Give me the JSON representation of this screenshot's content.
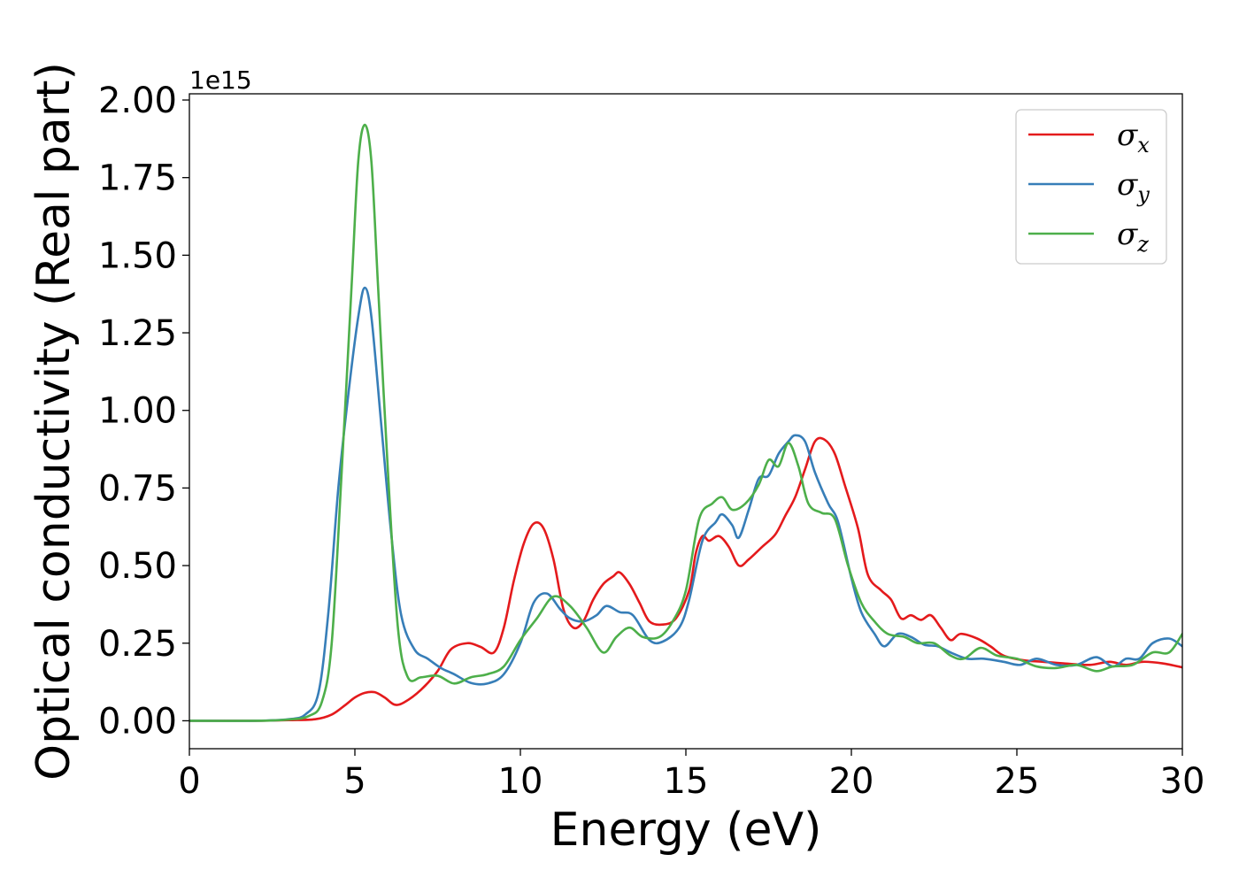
{
  "chart_data": {
    "type": "line",
    "xlabel": "Energy (eV)",
    "ylabel": "Optical conductivity (Real part)",
    "y_offset_label": "1e15",
    "xlim": [
      0,
      30
    ],
    "ylim": [
      -0.09,
      2.02
    ],
    "x_ticks": [
      0,
      5,
      10,
      15,
      20,
      25,
      30
    ],
    "x_tick_labels": [
      "0",
      "5",
      "10",
      "15",
      "20",
      "25",
      "30"
    ],
    "y_ticks": [
      0,
      0.25,
      0.5,
      0.75,
      1.0,
      1.25,
      1.5,
      1.75,
      2.0
    ],
    "y_tick_labels": [
      "0.00",
      "0.25",
      "0.50",
      "0.75",
      "1.00",
      "1.25",
      "1.50",
      "1.75",
      "2.00"
    ],
    "grid": false,
    "legend_position": "top-right",
    "series": [
      {
        "name": "σ",
        "subscript": "x",
        "color": "#e41a1c",
        "points": [
          [
            0,
            0
          ],
          [
            2,
            0
          ],
          [
            3,
            0.002
          ],
          [
            3.8,
            0.005
          ],
          [
            4.3,
            0.02
          ],
          [
            4.7,
            0.05
          ],
          [
            5.0,
            0.075
          ],
          [
            5.3,
            0.09
          ],
          [
            5.6,
            0.092
          ],
          [
            5.9,
            0.075
          ],
          [
            6.2,
            0.052
          ],
          [
            6.5,
            0.06
          ],
          [
            7.0,
            0.1
          ],
          [
            7.5,
            0.16
          ],
          [
            7.9,
            0.23
          ],
          [
            8.4,
            0.25
          ],
          [
            8.8,
            0.238
          ],
          [
            9.2,
            0.22
          ],
          [
            9.5,
            0.3
          ],
          [
            9.8,
            0.45
          ],
          [
            10.1,
            0.57
          ],
          [
            10.4,
            0.635
          ],
          [
            10.7,
            0.62
          ],
          [
            11.0,
            0.52
          ],
          [
            11.3,
            0.36
          ],
          [
            11.6,
            0.3
          ],
          [
            11.9,
            0.32
          ],
          [
            12.2,
            0.39
          ],
          [
            12.5,
            0.44
          ],
          [
            12.8,
            0.465
          ],
          [
            13.0,
            0.478
          ],
          [
            13.3,
            0.44
          ],
          [
            13.6,
            0.38
          ],
          [
            13.9,
            0.32
          ],
          [
            14.3,
            0.31
          ],
          [
            14.7,
            0.33
          ],
          [
            15.1,
            0.42
          ],
          [
            15.3,
            0.54
          ],
          [
            15.5,
            0.595
          ],
          [
            15.7,
            0.58
          ],
          [
            16.0,
            0.595
          ],
          [
            16.3,
            0.56
          ],
          [
            16.6,
            0.5
          ],
          [
            16.9,
            0.52
          ],
          [
            17.3,
            0.56
          ],
          [
            17.7,
            0.6
          ],
          [
            18.0,
            0.66
          ],
          [
            18.3,
            0.72
          ],
          [
            18.6,
            0.81
          ],
          [
            18.9,
            0.9
          ],
          [
            19.2,
            0.905
          ],
          [
            19.5,
            0.86
          ],
          [
            19.8,
            0.76
          ],
          [
            20.2,
            0.62
          ],
          [
            20.5,
            0.47
          ],
          [
            20.9,
            0.42
          ],
          [
            21.2,
            0.39
          ],
          [
            21.5,
            0.33
          ],
          [
            21.8,
            0.34
          ],
          [
            22.1,
            0.325
          ],
          [
            22.4,
            0.34
          ],
          [
            22.7,
            0.3
          ],
          [
            23.0,
            0.26
          ],
          [
            23.3,
            0.28
          ],
          [
            23.8,
            0.265
          ],
          [
            24.2,
            0.24
          ],
          [
            24.6,
            0.21
          ],
          [
            25.2,
            0.195
          ],
          [
            25.8,
            0.19
          ],
          [
            26.4,
            0.185
          ],
          [
            27.2,
            0.18
          ],
          [
            27.8,
            0.19
          ],
          [
            28.3,
            0.18
          ],
          [
            28.8,
            0.19
          ],
          [
            29.4,
            0.185
          ],
          [
            30.0,
            0.172
          ]
        ]
      },
      {
        "name": "σ",
        "subscript": "y",
        "color": "#377eb8",
        "points": [
          [
            0,
            0
          ],
          [
            2,
            0
          ],
          [
            3,
            0.005
          ],
          [
            3.5,
            0.02
          ],
          [
            3.9,
            0.09
          ],
          [
            4.2,
            0.35
          ],
          [
            4.5,
            0.75
          ],
          [
            4.8,
            1.05
          ],
          [
            5.1,
            1.3
          ],
          [
            5.3,
            1.395
          ],
          [
            5.5,
            1.3
          ],
          [
            5.8,
            0.95
          ],
          [
            6.1,
            0.6
          ],
          [
            6.4,
            0.34
          ],
          [
            6.8,
            0.23
          ],
          [
            7.2,
            0.2
          ],
          [
            7.6,
            0.17
          ],
          [
            8.0,
            0.15
          ],
          [
            8.5,
            0.122
          ],
          [
            9.0,
            0.12
          ],
          [
            9.5,
            0.15
          ],
          [
            10.0,
            0.25
          ],
          [
            10.4,
            0.38
          ],
          [
            10.8,
            0.41
          ],
          [
            11.2,
            0.36
          ],
          [
            11.5,
            0.33
          ],
          [
            11.9,
            0.32
          ],
          [
            12.3,
            0.34
          ],
          [
            12.6,
            0.37
          ],
          [
            13.0,
            0.35
          ],
          [
            13.4,
            0.34
          ],
          [
            13.9,
            0.26
          ],
          [
            14.3,
            0.255
          ],
          [
            14.8,
            0.3
          ],
          [
            15.1,
            0.39
          ],
          [
            15.5,
            0.58
          ],
          [
            15.9,
            0.64
          ],
          [
            16.1,
            0.665
          ],
          [
            16.4,
            0.63
          ],
          [
            16.6,
            0.59
          ],
          [
            16.9,
            0.68
          ],
          [
            17.2,
            0.78
          ],
          [
            17.5,
            0.79
          ],
          [
            17.8,
            0.86
          ],
          [
            18.1,
            0.9
          ],
          [
            18.3,
            0.92
          ],
          [
            18.6,
            0.9
          ],
          [
            18.9,
            0.8
          ],
          [
            19.3,
            0.7
          ],
          [
            19.6,
            0.64
          ],
          [
            20.0,
            0.46
          ],
          [
            20.3,
            0.35
          ],
          [
            20.7,
            0.28
          ],
          [
            21.0,
            0.24
          ],
          [
            21.4,
            0.28
          ],
          [
            21.8,
            0.27
          ],
          [
            22.2,
            0.245
          ],
          [
            22.6,
            0.24
          ],
          [
            23.0,
            0.22
          ],
          [
            23.5,
            0.2
          ],
          [
            24.0,
            0.2
          ],
          [
            24.6,
            0.19
          ],
          [
            25.1,
            0.18
          ],
          [
            25.6,
            0.2
          ],
          [
            26.2,
            0.18
          ],
          [
            26.8,
            0.18
          ],
          [
            27.4,
            0.205
          ],
          [
            27.9,
            0.175
          ],
          [
            28.3,
            0.2
          ],
          [
            28.7,
            0.2
          ],
          [
            29.1,
            0.25
          ],
          [
            29.6,
            0.265
          ],
          [
            30.0,
            0.24
          ]
        ]
      },
      {
        "name": "σ",
        "subscript": "z",
        "color": "#4daf4a",
        "points": [
          [
            0,
            0
          ],
          [
            2,
            0
          ],
          [
            3,
            0.004
          ],
          [
            3.6,
            0.015
          ],
          [
            4.0,
            0.06
          ],
          [
            4.3,
            0.25
          ],
          [
            4.6,
            0.8
          ],
          [
            4.9,
            1.4
          ],
          [
            5.1,
            1.8
          ],
          [
            5.3,
            1.92
          ],
          [
            5.5,
            1.8
          ],
          [
            5.7,
            1.4
          ],
          [
            6.0,
            0.8
          ],
          [
            6.3,
            0.3
          ],
          [
            6.6,
            0.14
          ],
          [
            7.0,
            0.14
          ],
          [
            7.5,
            0.145
          ],
          [
            8.0,
            0.12
          ],
          [
            8.5,
            0.14
          ],
          [
            9.0,
            0.15
          ],
          [
            9.5,
            0.175
          ],
          [
            10.0,
            0.26
          ],
          [
            10.5,
            0.33
          ],
          [
            11.0,
            0.4
          ],
          [
            11.5,
            0.37
          ],
          [
            12.0,
            0.3
          ],
          [
            12.5,
            0.22
          ],
          [
            12.9,
            0.27
          ],
          [
            13.3,
            0.3
          ],
          [
            13.7,
            0.27
          ],
          [
            14.2,
            0.27
          ],
          [
            14.6,
            0.32
          ],
          [
            15.0,
            0.42
          ],
          [
            15.4,
            0.65
          ],
          [
            15.8,
            0.7
          ],
          [
            16.1,
            0.72
          ],
          [
            16.4,
            0.68
          ],
          [
            16.8,
            0.7
          ],
          [
            17.2,
            0.76
          ],
          [
            17.5,
            0.84
          ],
          [
            17.8,
            0.82
          ],
          [
            18.1,
            0.895
          ],
          [
            18.4,
            0.82
          ],
          [
            18.7,
            0.7
          ],
          [
            19.1,
            0.67
          ],
          [
            19.5,
            0.65
          ],
          [
            19.9,
            0.5
          ],
          [
            20.3,
            0.38
          ],
          [
            20.7,
            0.32
          ],
          [
            21.1,
            0.28
          ],
          [
            21.6,
            0.27
          ],
          [
            22.0,
            0.25
          ],
          [
            22.5,
            0.25
          ],
          [
            23.0,
            0.21
          ],
          [
            23.4,
            0.2
          ],
          [
            23.9,
            0.235
          ],
          [
            24.4,
            0.21
          ],
          [
            25.0,
            0.2
          ],
          [
            25.6,
            0.175
          ],
          [
            26.2,
            0.17
          ],
          [
            26.8,
            0.18
          ],
          [
            27.4,
            0.16
          ],
          [
            27.9,
            0.175
          ],
          [
            28.5,
            0.18
          ],
          [
            29.1,
            0.22
          ],
          [
            29.6,
            0.22
          ],
          [
            30.0,
            0.28
          ]
        ]
      }
    ]
  }
}
